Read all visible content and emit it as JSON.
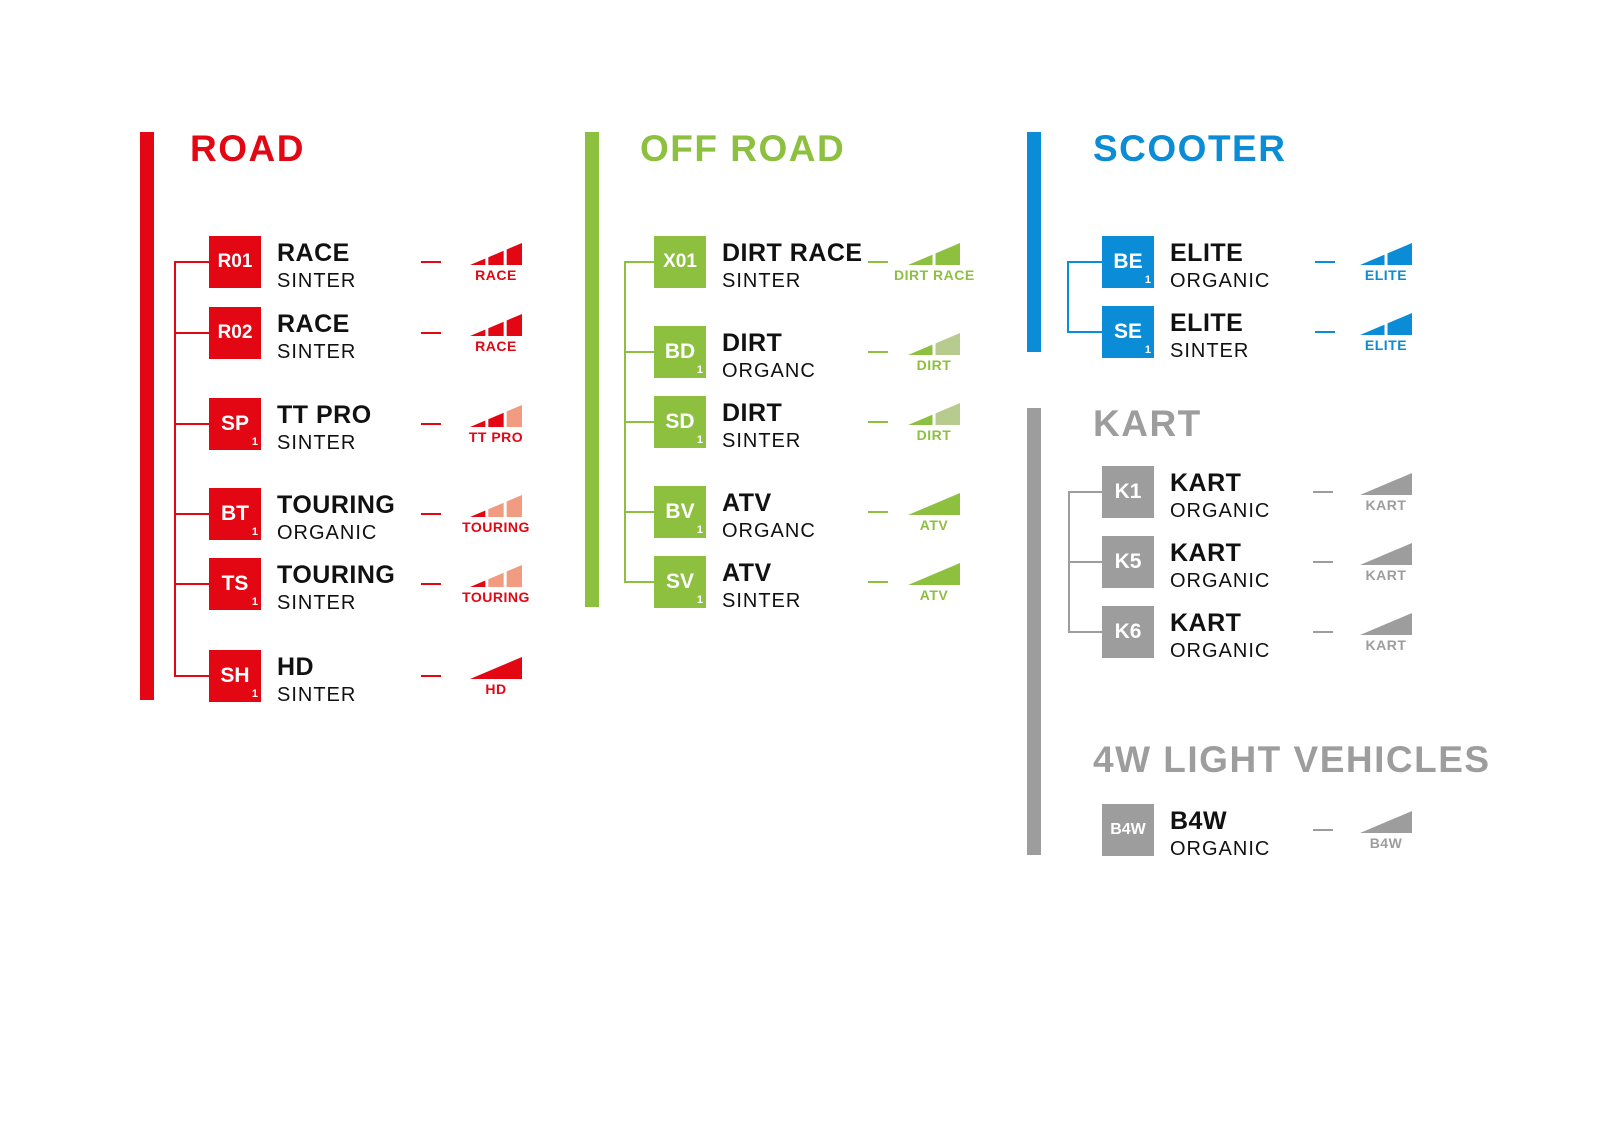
{
  "colors": {
    "road": "#e30613",
    "road_light": "#f19b80",
    "offroad": "#8dc03f",
    "offroad_light": "#b8cb8f",
    "scooter": "#0a8dd6",
    "scooter_light": "#7fc3ea",
    "kart": "#9d9d9d",
    "kart_light": "#cfcfcf"
  },
  "sections": [
    {
      "id": "road",
      "title": "ROAD",
      "rows": [
        {
          "code": "R01",
          "sub": "",
          "name": "RACE",
          "material": "SINTER",
          "icon": {
            "segments": 3,
            "active": 3,
            "label": "RACE"
          }
        },
        {
          "code": "R02",
          "sub": "",
          "name": "RACE",
          "material": "SINTER",
          "icon": {
            "segments": 3,
            "active": 3,
            "label": "RACE"
          }
        },
        {
          "code": "SP",
          "sub": "1",
          "name": "TT PRO",
          "material": "SINTER",
          "icon": {
            "segments": 3,
            "active": 2,
            "label": "TT PRO"
          }
        },
        {
          "code": "BT",
          "sub": "1",
          "name": "TOURING",
          "material": "ORGANIC",
          "icon": {
            "segments": 3,
            "active": 1,
            "label": "TOURING"
          }
        },
        {
          "code": "TS",
          "sub": "1",
          "name": "TOURING",
          "material": "SINTER",
          "icon": {
            "segments": 3,
            "active": 1,
            "label": "TOURING"
          }
        },
        {
          "code": "SH",
          "sub": "1",
          "name": "HD",
          "material": "SINTER",
          "icon": {
            "segments": 1,
            "active": 1,
            "label": "HD"
          }
        }
      ]
    },
    {
      "id": "offroad",
      "title": "OFF ROAD",
      "rows": [
        {
          "code": "X01",
          "sub": "",
          "name": "DIRT RACE",
          "material": "SINTER",
          "icon": {
            "segments": 2,
            "active": 2,
            "label": "DIRT RACE"
          }
        },
        {
          "code": "BD",
          "sub": "1",
          "name": "DIRT",
          "material": "ORGANC",
          "icon": {
            "segments": 2,
            "active": 1,
            "label": "DIRT"
          }
        },
        {
          "code": "SD",
          "sub": "1",
          "name": "DIRT",
          "material": "SINTER",
          "icon": {
            "segments": 2,
            "active": 1,
            "label": "DIRT"
          }
        },
        {
          "code": "BV",
          "sub": "1",
          "name": "ATV",
          "material": "ORGANC",
          "icon": {
            "segments": 1,
            "active": 1,
            "label": "ATV"
          }
        },
        {
          "code": "SV",
          "sub": "1",
          "name": "ATV",
          "material": "SINTER",
          "icon": {
            "segments": 1,
            "active": 1,
            "label": "ATV"
          }
        }
      ]
    },
    {
      "id": "scooter",
      "title": "SCOOTER",
      "rows": [
        {
          "code": "BE",
          "sub": "1",
          "name": "ELITE",
          "material": "ORGANIC",
          "icon": {
            "segments": 2,
            "active": 2,
            "label": "ELITE"
          }
        },
        {
          "code": "SE",
          "sub": "1",
          "name": "ELITE",
          "material": "SINTER",
          "icon": {
            "segments": 2,
            "active": 2,
            "label": "ELITE"
          }
        }
      ]
    },
    {
      "id": "kart",
      "title": "KART",
      "rows": [
        {
          "code": "K1",
          "sub": "",
          "name": "KART",
          "material": "ORGANIC",
          "icon": {
            "segments": 1,
            "active": 1,
            "label": "KART"
          }
        },
        {
          "code": "K5",
          "sub": "",
          "name": "KART",
          "material": "ORGANIC",
          "icon": {
            "segments": 1,
            "active": 1,
            "label": "KART"
          }
        },
        {
          "code": "K6",
          "sub": "",
          "name": "KART",
          "material": "ORGANIC",
          "icon": {
            "segments": 1,
            "active": 1,
            "label": "KART"
          }
        }
      ]
    },
    {
      "id": "b4w",
      "title": "4W LIGHT VEHICLES",
      "rows": [
        {
          "code": "B4W",
          "sub": "",
          "name": "B4W",
          "material": "ORGANIC",
          "icon": {
            "segments": 1,
            "active": 1,
            "label": "B4W"
          }
        }
      ]
    }
  ]
}
